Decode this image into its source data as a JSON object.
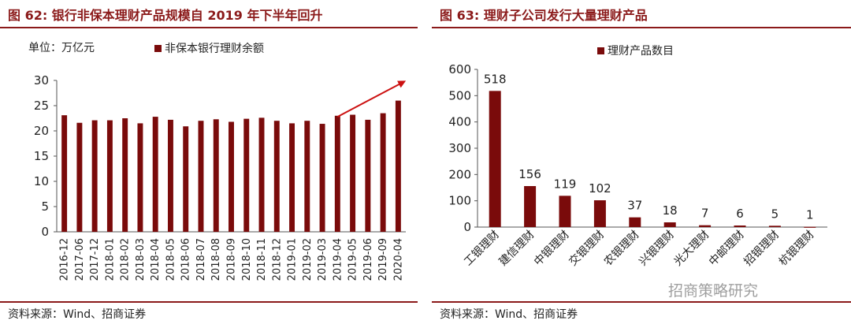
{
  "left": {
    "figure_title": "图 62:  银行非保本理财产品规模自 2019 年下半年回升",
    "source": "资料来源：Wind、招商证券"
  },
  "right": {
    "figure_title": "图 63:  理财子公司发行大量理财产品",
    "source": "资料来源：Wind、招商证券",
    "watermark": "招商策略研究"
  },
  "colors": {
    "bar": "#7a0b0b",
    "accent": "#8b1a1a",
    "arrow": "#cc1111"
  },
  "chart_data": [
    {
      "type": "bar",
      "title": "银行非保本理财产品规模自 2019 年下半年回升",
      "unit_label": "单位：万亿元",
      "legend": [
        "非保本银行理财余额"
      ],
      "legend_position": "top",
      "categories": [
        "2016-12",
        "2017-06",
        "2017-12",
        "2018-01",
        "2018-02",
        "2018-03",
        "2018-04",
        "2018-05",
        "2018-06",
        "2018-07",
        "2018-08",
        "2018-09",
        "2018-10",
        "2018-11",
        "2018-12",
        "2019-01",
        "2019-02",
        "2019-03",
        "2019-04",
        "2019-05",
        "2019-06",
        "2019-09",
        "2020-04"
      ],
      "series": [
        {
          "name": "非保本银行理财余额",
          "values": [
            23.1,
            21.6,
            22.1,
            22.1,
            22.5,
            21.5,
            22.8,
            22.2,
            20.9,
            22.0,
            22.3,
            21.8,
            22.4,
            22.6,
            22.0,
            21.5,
            22.0,
            21.4,
            23.0,
            23.2,
            22.2,
            23.5,
            26.0
          ]
        }
      ],
      "ylim": [
        0,
        30
      ],
      "yticks": [
        "0",
        "5",
        "10",
        "15",
        "20",
        "25",
        "30"
      ],
      "grid": false,
      "annotation": "upward-arrow"
    },
    {
      "type": "bar",
      "title": "理财子公司发行大量理财产品",
      "legend": [
        "理财产品数目"
      ],
      "legend_position": "top",
      "categories": [
        "工银理财",
        "建信理财",
        "中银理财",
        "交银理财",
        "农银理财",
        "兴银理财",
        "光大理财",
        "中邮理财",
        "招银理财",
        "杭银理财"
      ],
      "series": [
        {
          "name": "理财产品数目",
          "values": [
            518,
            156,
            119,
            102,
            37,
            18,
            7,
            6,
            5,
            1
          ]
        }
      ],
      "data_labels": [
        "518",
        "156",
        "119",
        "102",
        "37",
        "18",
        "7",
        "6",
        "5",
        "1"
      ],
      "ylim": [
        0,
        600
      ],
      "yticks": [
        "0",
        "100",
        "200",
        "300",
        "400",
        "500",
        "600"
      ],
      "grid": false
    }
  ]
}
